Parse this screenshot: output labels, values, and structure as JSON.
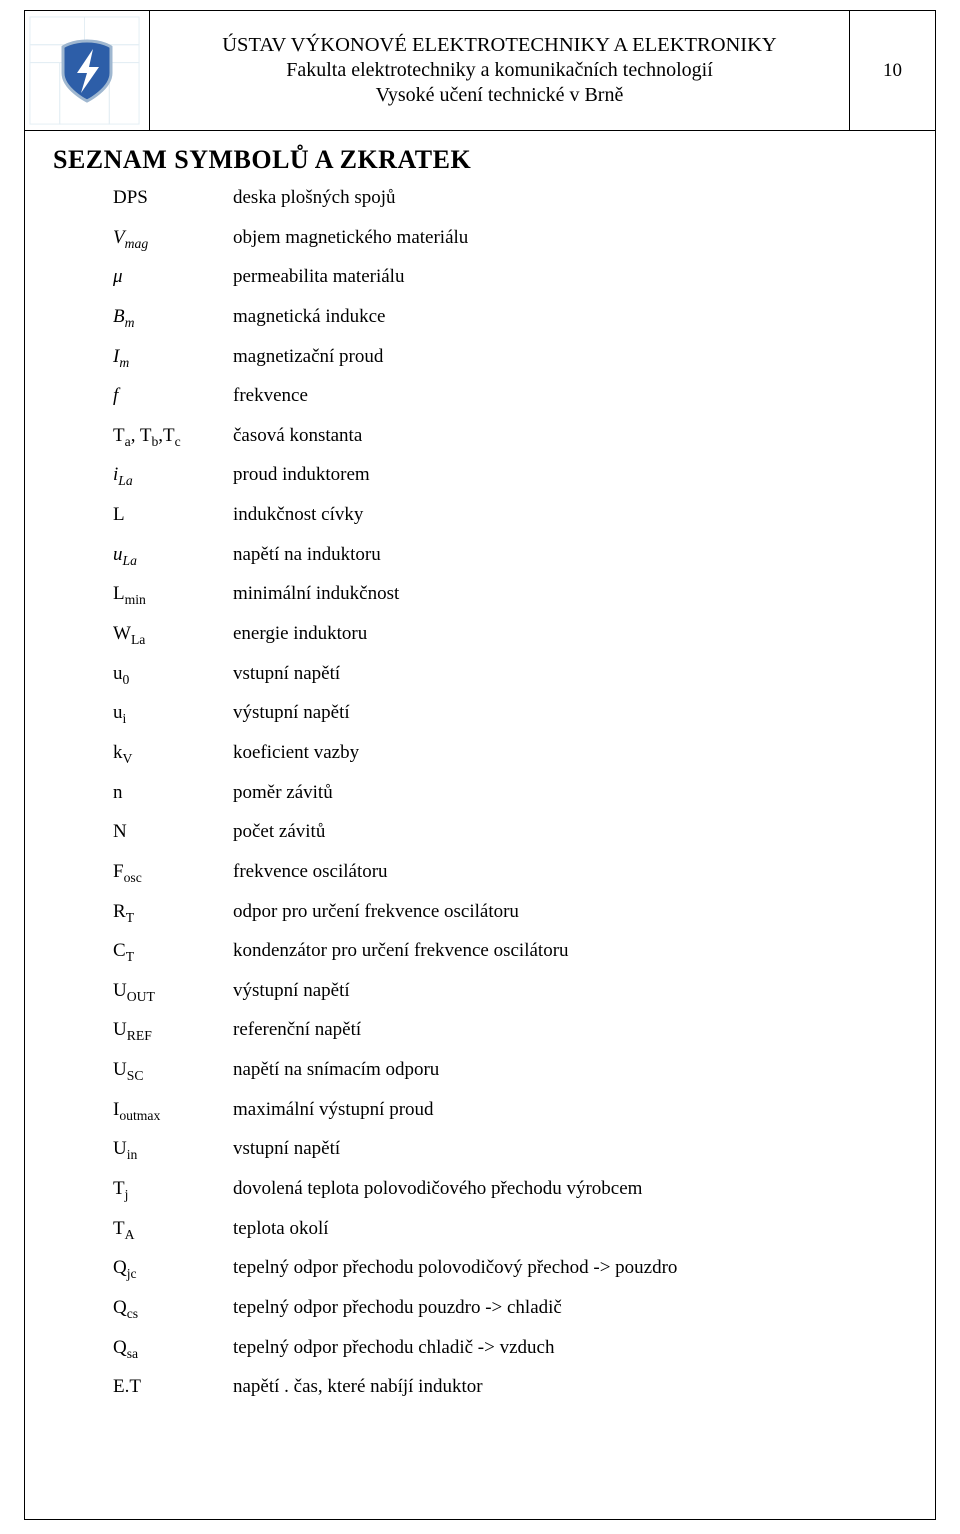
{
  "header": {
    "line1": "ÚSTAV VÝKONOVÉ ELEKTROTECHNIKY A ELEKTRONIKY",
    "line2": "Fakulta elektrotechniky a komunikačních technologií",
    "line3": "Vysoké učení technické v Brně",
    "page_number": "10",
    "logo_colors": {
      "shield_fill": "#2d5ea8",
      "shield_stroke": "#9fb7d0",
      "grid": "#e4eef4",
      "bolt": "#ffffff"
    }
  },
  "section_title": "SEZNAM SYMBOLŮ A ZKRATEK",
  "rows": [
    {
      "sym_html": "DPS",
      "desc": "deska plošných spojů"
    },
    {
      "sym_html": "<span class='ital'>V<sub>mag</sub></span>",
      "desc": "objem magnetického materiálu"
    },
    {
      "sym_html": "<span class='ital'>μ</span>",
      "desc": "permeabilita materiálu"
    },
    {
      "sym_html": "<span class='ital'>B<sub>m</sub></span>",
      "desc": "magnetická indukce"
    },
    {
      "sym_html": "<span class='ital'>I<sub>m</sub></span>",
      "desc": "magnetizační proud"
    },
    {
      "sym_html": "<span class='ital'>f</span>",
      "desc": "frekvence"
    },
    {
      "sym_html": "T<sub>a</sub>, T<sub>b</sub>,T<sub>c</sub>",
      "desc": "časová konstanta"
    },
    {
      "sym_html": "<span class='ital'>i<sub>La</sub></span>",
      "desc": "proud induktorem"
    },
    {
      "sym_html": "L",
      "desc": "indukčnost cívky"
    },
    {
      "sym_html": "<span class='ital'>u<sub>La</sub></span>",
      "desc": "napětí na induktoru"
    },
    {
      "sym_html": "L<sub>min</sub>",
      "desc": "minimální indukčnost"
    },
    {
      "sym_html": "W<sub>La</sub>",
      "desc": "energie induktoru"
    },
    {
      "sym_html": "u<sub>0</sub>",
      "desc": "vstupní napětí"
    },
    {
      "sym_html": "u<sub>i</sub>",
      "desc": "výstupní napětí"
    },
    {
      "sym_html": "k<sub>V</sub>",
      "desc": "koeficient vazby"
    },
    {
      "sym_html": "n",
      "desc": "poměr závitů"
    },
    {
      "sym_html": "N",
      "desc": "počet závitů"
    },
    {
      "sym_html": "F<sub>osc</sub>",
      "desc": "frekvence oscilátoru"
    },
    {
      "sym_html": "R<sub>T</sub>",
      "desc": "odpor pro určení frekvence oscilátoru"
    },
    {
      "sym_html": "C<sub>T</sub>",
      "desc": "kondenzátor pro určení frekvence oscilátoru"
    },
    {
      "sym_html": "U<sub>OUT</sub>",
      "desc": "výstupní napětí"
    },
    {
      "sym_html": "U<sub>REF</sub>",
      "desc": "referenční napětí"
    },
    {
      "sym_html": "U<sub>SC</sub>",
      "desc": "napětí na snímacím odporu"
    },
    {
      "sym_html": "I<sub>outmax</sub>",
      "desc": "maximální výstupní proud"
    },
    {
      "sym_html": "U<sub>in</sub>",
      "desc": "vstupní napětí"
    },
    {
      "sym_html": "T<sub>j</sub>",
      "desc": "dovolená teplota polovodičového přechodu výrobcem"
    },
    {
      "sym_html": "T<sub>A</sub>",
      "desc": "teplota okolí"
    },
    {
      "sym_html": "Q<sub>jc</sub>",
      "desc": "tepelný odpor přechodu polovodičový přechod -> pouzdro"
    },
    {
      "sym_html": "Q<sub>cs</sub>",
      "desc": "tepelný odpor přechodu pouzdro -> chladič"
    },
    {
      "sym_html": "Q<sub>sa</sub>",
      "desc": "tepelný odpor přechodu chladič -> vzduch"
    },
    {
      "sym_html": "E.T",
      "desc": "napětí . čas, které nabíjí induktor"
    }
  ]
}
